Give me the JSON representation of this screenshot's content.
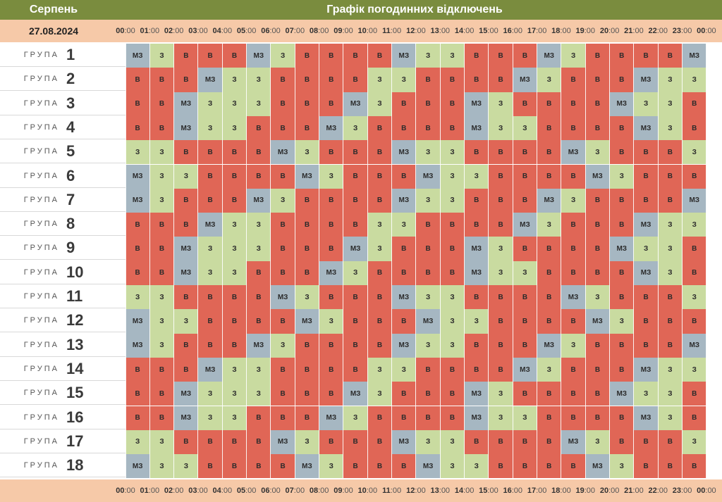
{
  "header": {
    "month": "Серпень",
    "title": "Графік погодинних відключень",
    "date": "27.08.2024"
  },
  "times": [
    {
      "h": "00",
      "m": "00"
    },
    {
      "h": "01",
      "m": "00"
    },
    {
      "h": "02",
      "m": "00"
    },
    {
      "h": "03",
      "m": "00"
    },
    {
      "h": "04",
      "m": "00"
    },
    {
      "h": "05",
      "m": "00"
    },
    {
      "h": "06",
      "m": "00"
    },
    {
      "h": "07",
      "m": "00"
    },
    {
      "h": "08",
      "m": "00"
    },
    {
      "h": "09",
      "m": "00"
    },
    {
      "h": "10",
      "m": "00"
    },
    {
      "h": "11",
      "m": "00"
    },
    {
      "h": "12",
      "m": "00"
    },
    {
      "h": "13",
      "m": "00"
    },
    {
      "h": "14",
      "m": "00"
    },
    {
      "h": "15",
      "m": "00"
    },
    {
      "h": "16",
      "m": "00"
    },
    {
      "h": "17",
      "m": "00"
    },
    {
      "h": "18",
      "m": "00"
    },
    {
      "h": "19",
      "m": "00"
    },
    {
      "h": "20",
      "m": "00"
    },
    {
      "h": "21",
      "m": "00"
    },
    {
      "h": "22",
      "m": "00"
    },
    {
      "h": "23",
      "m": "00"
    },
    {
      "h": "00",
      "m": "00"
    }
  ],
  "group_word": "ГРУПА",
  "status_labels": {
    "v": "В",
    "z": "З",
    "mz": "МЗ"
  },
  "status_colors": {
    "v": "#e06656",
    "z": "#c9dba0",
    "mz": "#a6b7c2"
  },
  "groups": [
    {
      "number": "1",
      "hours": [
        "mz",
        "z",
        "v",
        "v",
        "v",
        "mz",
        "z",
        "v",
        "v",
        "v",
        "v",
        "mz",
        "z",
        "z",
        "v",
        "v",
        "v",
        "mz",
        "z",
        "v",
        "v",
        "v",
        "v",
        "mz"
      ]
    },
    {
      "number": "2",
      "hours": [
        "v",
        "v",
        "v",
        "mz",
        "z",
        "z",
        "v",
        "v",
        "v",
        "v",
        "z",
        "z",
        "v",
        "v",
        "v",
        "v",
        "mz",
        "z",
        "v",
        "v",
        "v",
        "mz",
        "z",
        "z"
      ]
    },
    {
      "number": "3",
      "hours": [
        "v",
        "v",
        "mz",
        "z",
        "z",
        "z",
        "v",
        "v",
        "v",
        "mz",
        "z",
        "v",
        "v",
        "v",
        "mz",
        "z",
        "v",
        "v",
        "v",
        "v",
        "mz",
        "z",
        "z",
        "v"
      ]
    },
    {
      "number": "4",
      "hours": [
        "v",
        "v",
        "mz",
        "z",
        "z",
        "v",
        "v",
        "v",
        "mz",
        "z",
        "v",
        "v",
        "v",
        "v",
        "mz",
        "z",
        "z",
        "v",
        "v",
        "v",
        "v",
        "mz",
        "z",
        "v"
      ]
    },
    {
      "number": "5",
      "hours": [
        "z",
        "z",
        "v",
        "v",
        "v",
        "v",
        "mz",
        "z",
        "v",
        "v",
        "v",
        "mz",
        "z",
        "z",
        "v",
        "v",
        "v",
        "v",
        "mz",
        "z",
        "v",
        "v",
        "v",
        "z"
      ]
    },
    {
      "number": "6",
      "hours": [
        "mz",
        "z",
        "z",
        "v",
        "v",
        "v",
        "v",
        "mz",
        "z",
        "v",
        "v",
        "v",
        "mz",
        "z",
        "z",
        "v",
        "v",
        "v",
        "v",
        "mz",
        "z",
        "v",
        "v",
        "v"
      ]
    },
    {
      "number": "7",
      "hours": [
        "mz",
        "z",
        "v",
        "v",
        "v",
        "mz",
        "z",
        "v",
        "v",
        "v",
        "v",
        "mz",
        "z",
        "z",
        "v",
        "v",
        "v",
        "mz",
        "z",
        "v",
        "v",
        "v",
        "v",
        "mz"
      ]
    },
    {
      "number": "8",
      "hours": [
        "v",
        "v",
        "v",
        "mz",
        "z",
        "z",
        "v",
        "v",
        "v",
        "v",
        "z",
        "z",
        "v",
        "v",
        "v",
        "v",
        "mz",
        "z",
        "v",
        "v",
        "v",
        "mz",
        "z",
        "z"
      ]
    },
    {
      "number": "9",
      "hours": [
        "v",
        "v",
        "mz",
        "z",
        "z",
        "z",
        "v",
        "v",
        "v",
        "mz",
        "z",
        "v",
        "v",
        "v",
        "mz",
        "z",
        "v",
        "v",
        "v",
        "v",
        "mz",
        "z",
        "z",
        "v"
      ]
    },
    {
      "number": "10",
      "hours": [
        "v",
        "v",
        "mz",
        "z",
        "z",
        "v",
        "v",
        "v",
        "mz",
        "z",
        "v",
        "v",
        "v",
        "v",
        "mz",
        "z",
        "z",
        "v",
        "v",
        "v",
        "v",
        "mz",
        "z",
        "v"
      ]
    },
    {
      "number": "11",
      "hours": [
        "z",
        "z",
        "v",
        "v",
        "v",
        "v",
        "mz",
        "z",
        "v",
        "v",
        "v",
        "mz",
        "z",
        "z",
        "v",
        "v",
        "v",
        "v",
        "mz",
        "z",
        "v",
        "v",
        "v",
        "z"
      ]
    },
    {
      "number": "12",
      "hours": [
        "mz",
        "z",
        "z",
        "v",
        "v",
        "v",
        "v",
        "mz",
        "z",
        "v",
        "v",
        "v",
        "mz",
        "z",
        "z",
        "v",
        "v",
        "v",
        "v",
        "mz",
        "z",
        "v",
        "v",
        "v"
      ]
    },
    {
      "number": "13",
      "hours": [
        "mz",
        "z",
        "v",
        "v",
        "v",
        "mz",
        "z",
        "v",
        "v",
        "v",
        "v",
        "mz",
        "z",
        "z",
        "v",
        "v",
        "v",
        "mz",
        "z",
        "v",
        "v",
        "v",
        "v",
        "mz"
      ]
    },
    {
      "number": "14",
      "hours": [
        "v",
        "v",
        "v",
        "mz",
        "z",
        "z",
        "v",
        "v",
        "v",
        "v",
        "z",
        "z",
        "v",
        "v",
        "v",
        "v",
        "mz",
        "z",
        "v",
        "v",
        "v",
        "mz",
        "z",
        "z"
      ]
    },
    {
      "number": "15",
      "hours": [
        "v",
        "v",
        "mz",
        "z",
        "z",
        "z",
        "v",
        "v",
        "v",
        "mz",
        "z",
        "v",
        "v",
        "v",
        "mz",
        "z",
        "v",
        "v",
        "v",
        "v",
        "mz",
        "z",
        "z",
        "v"
      ]
    },
    {
      "number": "16",
      "hours": [
        "v",
        "v",
        "mz",
        "z",
        "z",
        "v",
        "v",
        "v",
        "mz",
        "z",
        "v",
        "v",
        "v",
        "v",
        "mz",
        "z",
        "z",
        "v",
        "v",
        "v",
        "v",
        "mz",
        "z",
        "v"
      ]
    },
    {
      "number": "17",
      "hours": [
        "z",
        "z",
        "v",
        "v",
        "v",
        "v",
        "mz",
        "z",
        "v",
        "v",
        "v",
        "mz",
        "z",
        "z",
        "v",
        "v",
        "v",
        "v",
        "mz",
        "z",
        "v",
        "v",
        "v",
        "z"
      ]
    },
    {
      "number": "18",
      "hours": [
        "mz",
        "z",
        "z",
        "v",
        "v",
        "v",
        "v",
        "mz",
        "z",
        "v",
        "v",
        "v",
        "mz",
        "z",
        "z",
        "v",
        "v",
        "v",
        "v",
        "mz",
        "z",
        "v",
        "v",
        "v"
      ]
    }
  ]
}
